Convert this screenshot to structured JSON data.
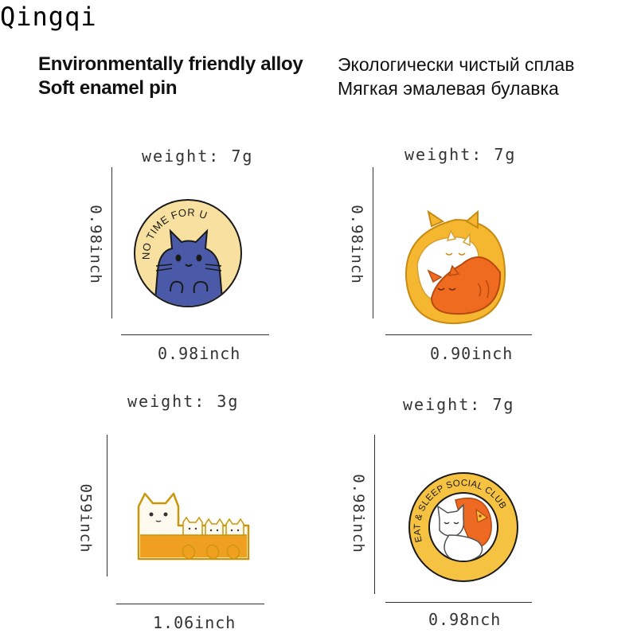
{
  "brand": "Qingqi",
  "headline_en": [
    "Environmentally friendly alloy",
    "Soft enamel pin"
  ],
  "headline_ru": [
    "Экологически чистый сплав",
    "Мягкая эмалевая булавка"
  ],
  "pins": [
    {
      "weight": "weight: 7g",
      "height": "0.98inch",
      "width": "0.98inch",
      "arc_text": "NO TIME FOR U",
      "colors": {
        "bg": "#f7e0a0",
        "cat": "#4a5aa8",
        "rim": "#1a1a1a"
      }
    },
    {
      "weight": "weight: 7g",
      "height": "0.98inch",
      "width": "0.90inch",
      "colors": {
        "yellow": "#f5b630",
        "orange": "#ef6b1f",
        "white": "#ffffff"
      }
    },
    {
      "weight": "weight: 3g",
      "height": "059inch",
      "width": "1.06inch",
      "colors": {
        "white": "#fffaf0",
        "orange": "#f0a020",
        "rim": "#c8960a"
      }
    },
    {
      "weight": "weight: 7g",
      "height": "0.98inch",
      "width": "0.98nch",
      "arc_text": "EAT & SLEEP SOCIAL CLUB",
      "colors": {
        "ring": "#f6c242",
        "orange": "#ee6a22",
        "white": "#ffffff"
      }
    }
  ]
}
